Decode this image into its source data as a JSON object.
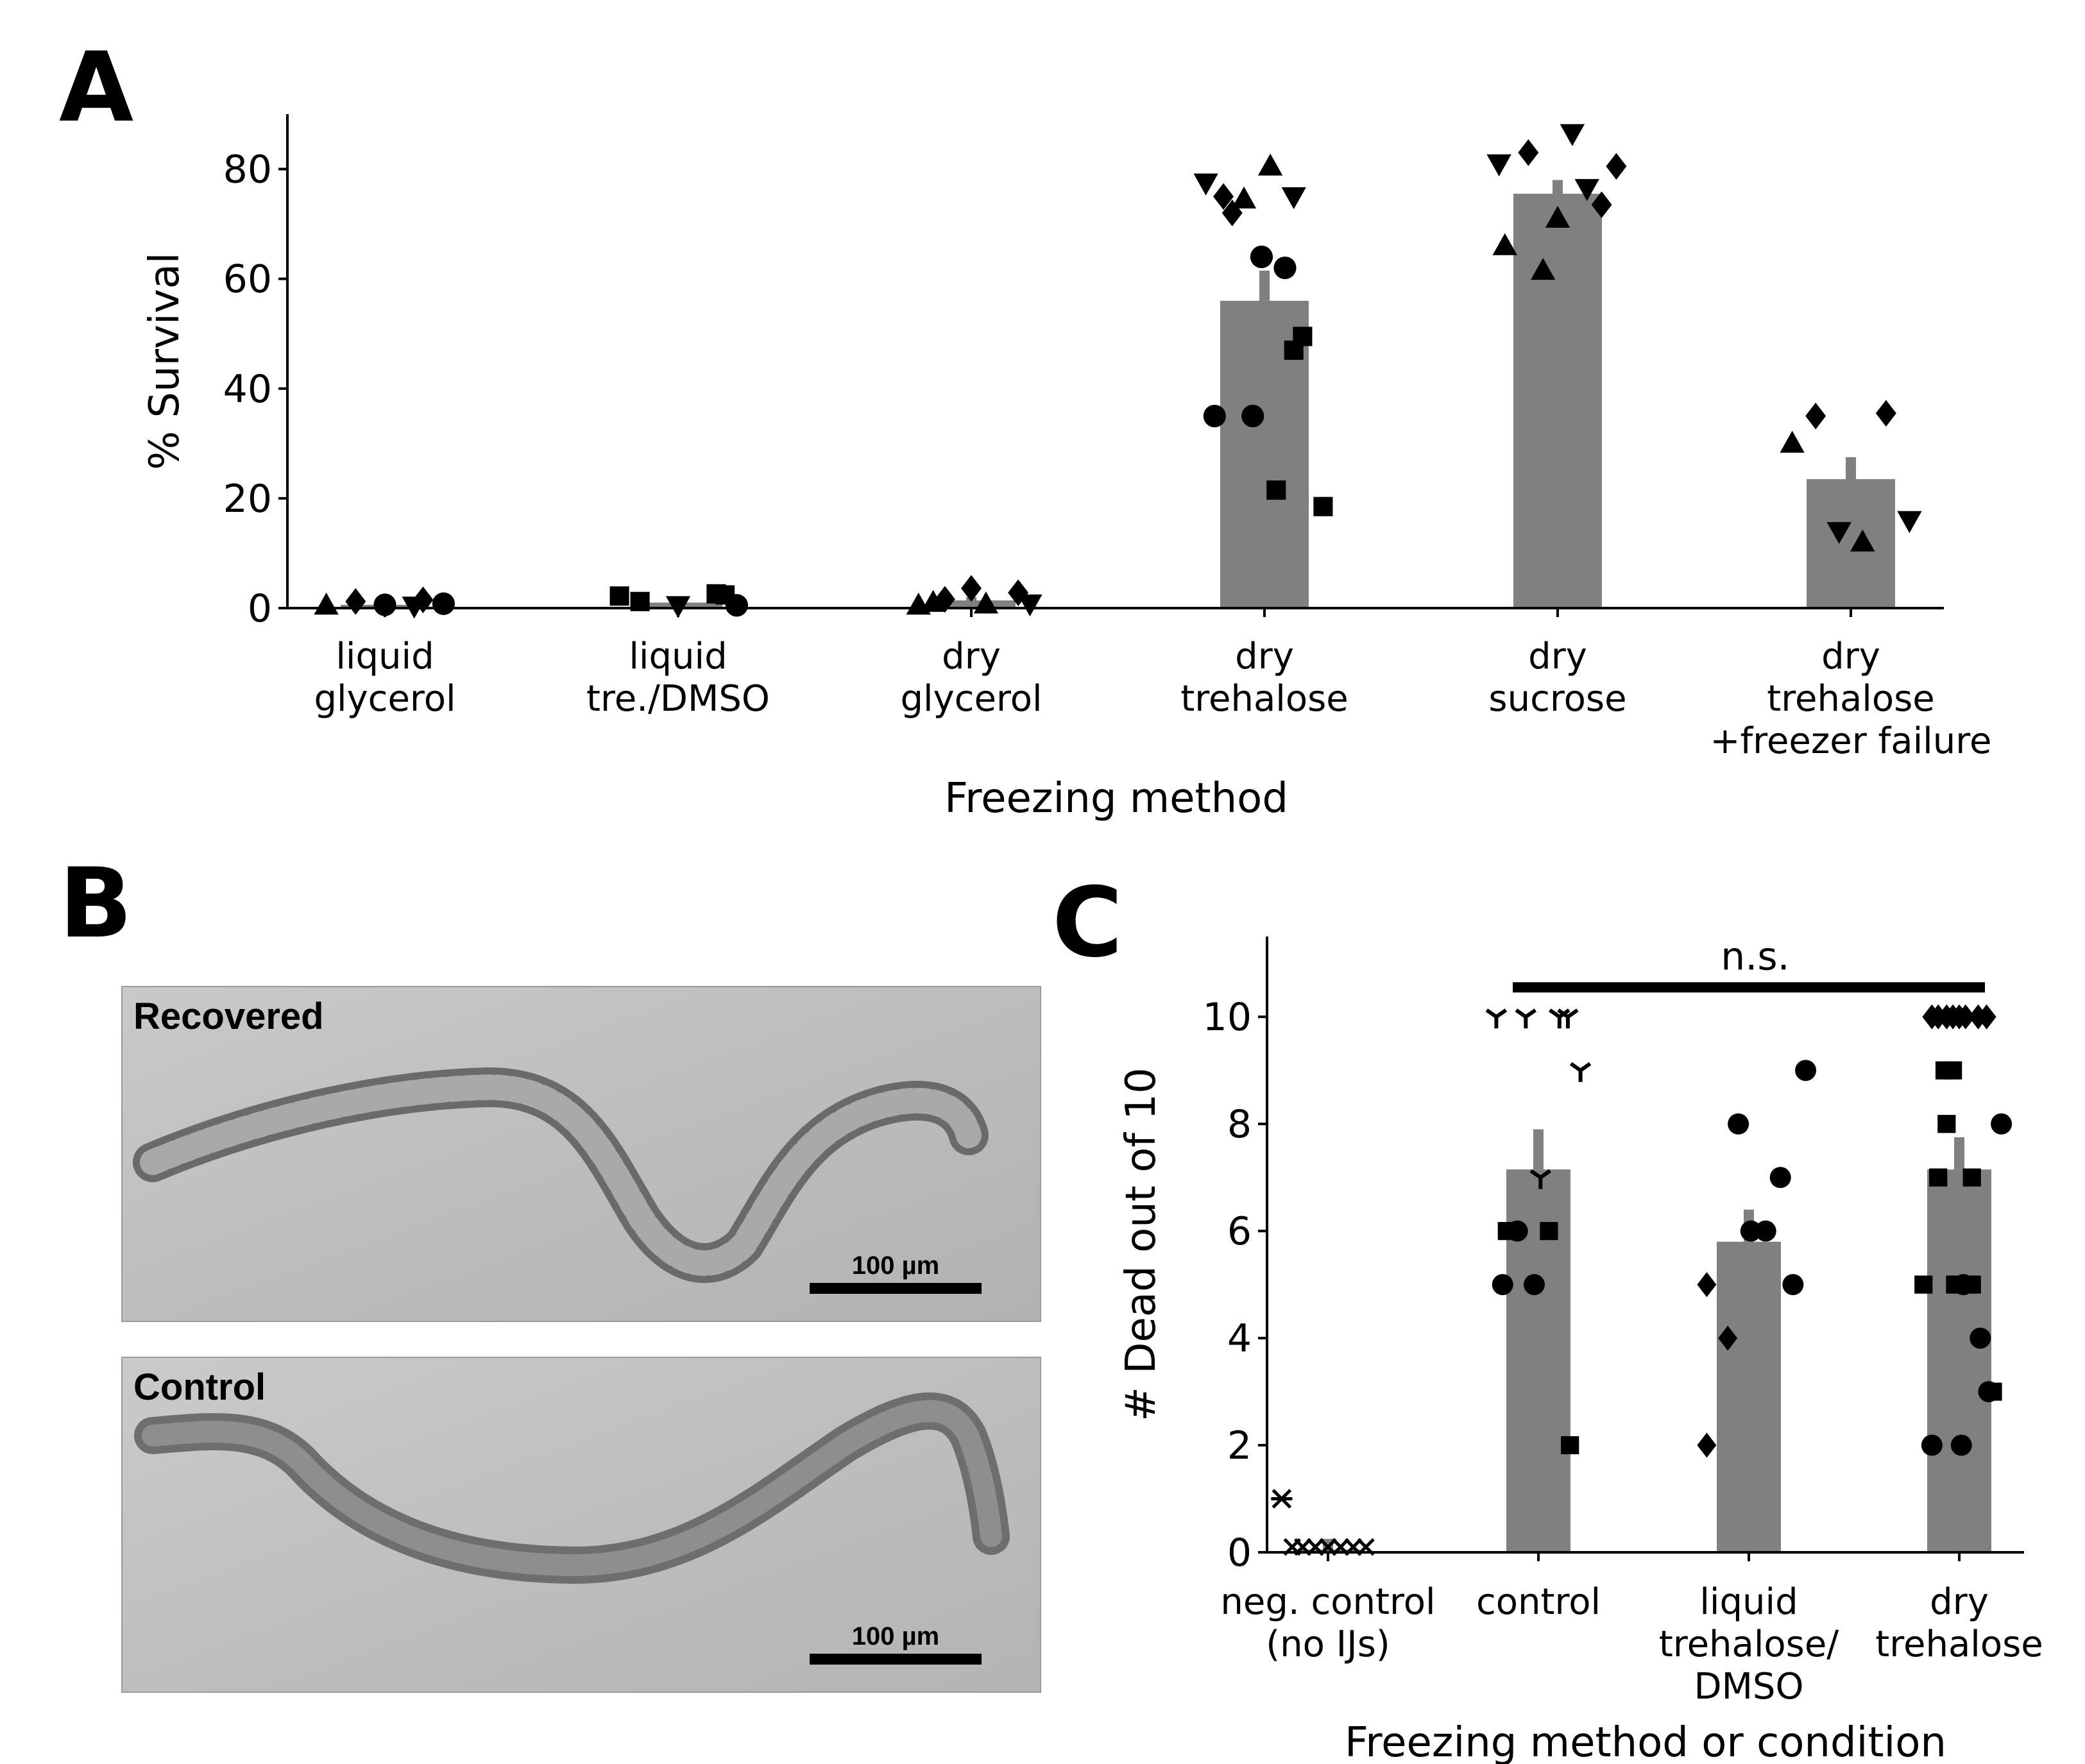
{
  "panels": {
    "a": {
      "letter": "A"
    },
    "b": {
      "letter": "B",
      "images": [
        {
          "label": "Recovered",
          "scale_label": "100 µm"
        },
        {
          "label": "Control",
          "scale_label": "100 µm"
        }
      ]
    },
    "c": {
      "letter": "C",
      "annotation": "n.s."
    }
  },
  "chart_data": [
    {
      "type": "bar",
      "panel": "A",
      "title": "",
      "xlabel": "Freezing method",
      "ylabel": "% Survival",
      "ylim": [
        0,
        90
      ],
      "yticks": [
        0,
        20,
        40,
        60,
        80
      ],
      "categories": [
        [
          "liquid",
          "glycerol"
        ],
        [
          "liquid",
          "tre./DMSO"
        ],
        [
          "dry",
          "glycerol"
        ],
        [
          "dry",
          "trehalose"
        ],
        [
          "dry",
          "sucrose"
        ],
        [
          "dry",
          "trehalose",
          "+freezer failure"
        ]
      ],
      "values": [
        0.6,
        1.0,
        1.4,
        56,
        75.5,
        23.5
      ],
      "error_upper": [
        0.9,
        1.3,
        2.0,
        61.5,
        78,
        27.5
      ],
      "bar_color": "#808080",
      "points": [
        [
          {
            "m": "triangle-up",
            "dx": -0.2,
            "y": 0.5
          },
          {
            "m": "diamond",
            "dx": -0.1,
            "y": 1.2
          },
          {
            "m": "circle",
            "dx": 0,
            "y": 0.6
          },
          {
            "m": "triangle-down",
            "dx": 0.1,
            "y": 0.4
          },
          {
            "m": "diamond",
            "dx": 0.13,
            "y": 1.5
          },
          {
            "m": "circle",
            "dx": 0.2,
            "y": 0.8
          }
        ],
        [
          {
            "m": "square",
            "dx": -0.2,
            "y": 2.2
          },
          {
            "m": "square",
            "dx": -0.13,
            "y": 1.2
          },
          {
            "m": "triangle-down",
            "dx": 0,
            "y": 0.5
          },
          {
            "m": "square",
            "dx": 0.13,
            "y": 2.6
          },
          {
            "m": "square",
            "dx": 0.16,
            "y": 2.4
          },
          {
            "m": "circle",
            "dx": 0.2,
            "y": 0.5
          }
        ],
        [
          {
            "m": "triangle-up",
            "dx": -0.18,
            "y": 0.5
          },
          {
            "m": "triangle-up",
            "dx": -0.13,
            "y": 1.0
          },
          {
            "m": "diamond",
            "dx": -0.09,
            "y": 1.6
          },
          {
            "m": "diamond",
            "dx": 0,
            "y": 3.6
          },
          {
            "m": "triangle-up",
            "dx": 0.05,
            "y": 0.7
          },
          {
            "m": "diamond",
            "dx": 0.16,
            "y": 2.8
          },
          {
            "m": "triangle-down",
            "dx": 0.2,
            "y": 0.8
          }
        ],
        [
          {
            "m": "triangle-down",
            "dx": -0.2,
            "y": 77.5
          },
          {
            "m": "diamond",
            "dx": -0.14,
            "y": 75
          },
          {
            "m": "diamond",
            "dx": -0.11,
            "y": 72
          },
          {
            "m": "triangle-up",
            "dx": -0.07,
            "y": 74.5
          },
          {
            "m": "triangle-up",
            "dx": 0.02,
            "y": 80.5
          },
          {
            "m": "triangle-down",
            "dx": 0.1,
            "y": 75
          },
          {
            "m": "circle",
            "dx": -0.01,
            "y": 64
          },
          {
            "m": "circle",
            "dx": 0.07,
            "y": 62
          },
          {
            "m": "square",
            "dx": 0.13,
            "y": 49.5
          },
          {
            "m": "square",
            "dx": 0.1,
            "y": 47
          },
          {
            "m": "circle",
            "dx": -0.17,
            "y": 35
          },
          {
            "m": "circle",
            "dx": -0.04,
            "y": 35
          },
          {
            "m": "square",
            "dx": 0.04,
            "y": 21.5
          },
          {
            "m": "square",
            "dx": 0.2,
            "y": 18.5
          }
        ],
        [
          {
            "m": "triangle-down",
            "dx": -0.2,
            "y": 81
          },
          {
            "m": "diamond",
            "dx": -0.1,
            "y": 83
          },
          {
            "m": "triangle-down",
            "dx": 0.05,
            "y": 86.5
          },
          {
            "m": "triangle-down",
            "dx": 0.1,
            "y": 76.5
          },
          {
            "m": "diamond",
            "dx": 0.2,
            "y": 80.5
          },
          {
            "m": "diamond",
            "dx": 0.15,
            "y": 73.5
          },
          {
            "m": "triangle-up",
            "dx": 0,
            "y": 71
          },
          {
            "m": "triangle-up",
            "dx": -0.18,
            "y": 66
          },
          {
            "m": "triangle-up",
            "dx": -0.05,
            "y": 61.5
          }
        ],
        [
          {
            "m": "triangle-up",
            "dx": -0.2,
            "y": 30
          },
          {
            "m": "diamond",
            "dx": -0.12,
            "y": 35
          },
          {
            "m": "diamond",
            "dx": 0.12,
            "y": 35.5
          },
          {
            "m": "triangle-down",
            "dx": -0.04,
            "y": 14
          },
          {
            "m": "triangle-up",
            "dx": 0.04,
            "y": 12
          },
          {
            "m": "triangle-down",
            "dx": 0.2,
            "y": 16
          }
        ]
      ]
    },
    {
      "type": "bar",
      "panel": "C",
      "title": "",
      "xlabel": "Freezing method or condition",
      "ylabel": "# Dead out of 10",
      "ylim": [
        0,
        11.5
      ],
      "yticks": [
        0,
        2,
        4,
        6,
        8,
        10
      ],
      "categories": [
        [
          "neg. control",
          "(no IJs)"
        ],
        [
          "control"
        ],
        [
          "liquid",
          "trehalose/",
          "DMSO"
        ],
        [
          "dry",
          "trehalose"
        ]
      ],
      "values": [
        0.05,
        7.15,
        5.8,
        7.15
      ],
      "error_upper": [
        0.25,
        7.9,
        6.4,
        7.75
      ],
      "bar_color": "#808080",
      "significance": {
        "from": 1,
        "to": 3,
        "y": 10.55
      },
      "points": [
        [
          {
            "m": "asterisk",
            "dx": -0.22,
            "y": 1
          },
          {
            "m": "x",
            "dx": -0.17,
            "y": 0.1
          },
          {
            "m": "x",
            "dx": -0.12,
            "y": 0.1
          },
          {
            "m": "x",
            "dx": -0.06,
            "y": 0.1
          },
          {
            "m": "x",
            "dx": 0,
            "y": 0.1
          },
          {
            "m": "x",
            "dx": 0.06,
            "y": 0.1
          },
          {
            "m": "x",
            "dx": 0.12,
            "y": 0.1
          },
          {
            "m": "x",
            "dx": 0.18,
            "y": 0.1
          }
        ],
        [
          {
            "m": "tri",
            "dx": -0.2,
            "y": 10
          },
          {
            "m": "tri",
            "dx": -0.06,
            "y": 10
          },
          {
            "m": "tri",
            "dx": 0.1,
            "y": 10
          },
          {
            "m": "tri",
            "dx": 0.14,
            "y": 10
          },
          {
            "m": "tri",
            "dx": 0.2,
            "y": 9
          },
          {
            "m": "tri",
            "dx": 0.01,
            "y": 7
          },
          {
            "m": "square",
            "dx": -0.15,
            "y": 6
          },
          {
            "m": "circle",
            "dx": -0.1,
            "y": 6
          },
          {
            "m": "square",
            "dx": 0.05,
            "y": 6
          },
          {
            "m": "circle",
            "dx": -0.17,
            "y": 5
          },
          {
            "m": "circle",
            "dx": -0.02,
            "y": 5
          },
          {
            "m": "square",
            "dx": 0.15,
            "y": 2
          }
        ],
        [
          {
            "m": "circle",
            "dx": -0.05,
            "y": 8
          },
          {
            "m": "circle",
            "dx": 0.27,
            "y": 9
          },
          {
            "m": "circle",
            "dx": 0.15,
            "y": 7
          },
          {
            "m": "circle",
            "dx": 0.01,
            "y": 6
          },
          {
            "m": "circle",
            "dx": 0.08,
            "y": 6
          },
          {
            "m": "diamond",
            "dx": -0.2,
            "y": 5
          },
          {
            "m": "circle",
            "dx": 0.21,
            "y": 5
          },
          {
            "m": "diamond",
            "dx": -0.1,
            "y": 4
          },
          {
            "m": "diamond",
            "dx": -0.2,
            "y": 2
          }
        ],
        [
          {
            "m": "diamond",
            "dx": -0.13,
            "y": 10
          },
          {
            "m": "diamond",
            "dx": -0.1,
            "y": 10
          },
          {
            "m": "diamond",
            "dx": -0.06,
            "y": 10
          },
          {
            "m": "diamond",
            "dx": -0.03,
            "y": 10
          },
          {
            "m": "diamond",
            "dx": 0.0,
            "y": 10
          },
          {
            "m": "diamond",
            "dx": 0.03,
            "y": 10
          },
          {
            "m": "diamond",
            "dx": 0.09,
            "y": 10
          },
          {
            "m": "diamond",
            "dx": 0.13,
            "y": 10
          },
          {
            "m": "square",
            "dx": -0.07,
            "y": 9
          },
          {
            "m": "square",
            "dx": -0.03,
            "y": 9
          },
          {
            "m": "square",
            "dx": -0.06,
            "y": 8
          },
          {
            "m": "circle",
            "dx": 0.2,
            "y": 8
          },
          {
            "m": "square",
            "dx": -0.1,
            "y": 7
          },
          {
            "m": "square",
            "dx": 0.06,
            "y": 7
          },
          {
            "m": "square",
            "dx": -0.17,
            "y": 5
          },
          {
            "m": "square",
            "dx": -0.02,
            "y": 5
          },
          {
            "m": "circle",
            "dx": 0.02,
            "y": 5
          },
          {
            "m": "square",
            "dx": 0.06,
            "y": 5
          },
          {
            "m": "circle",
            "dx": 0.1,
            "y": 4
          },
          {
            "m": "square",
            "dx": 0.16,
            "y": 3
          },
          {
            "m": "circle",
            "dx": 0.14,
            "y": 3
          },
          {
            "m": "circle",
            "dx": -0.13,
            "y": 2
          },
          {
            "m": "circle",
            "dx": 0.01,
            "y": 2
          }
        ]
      ]
    }
  ]
}
